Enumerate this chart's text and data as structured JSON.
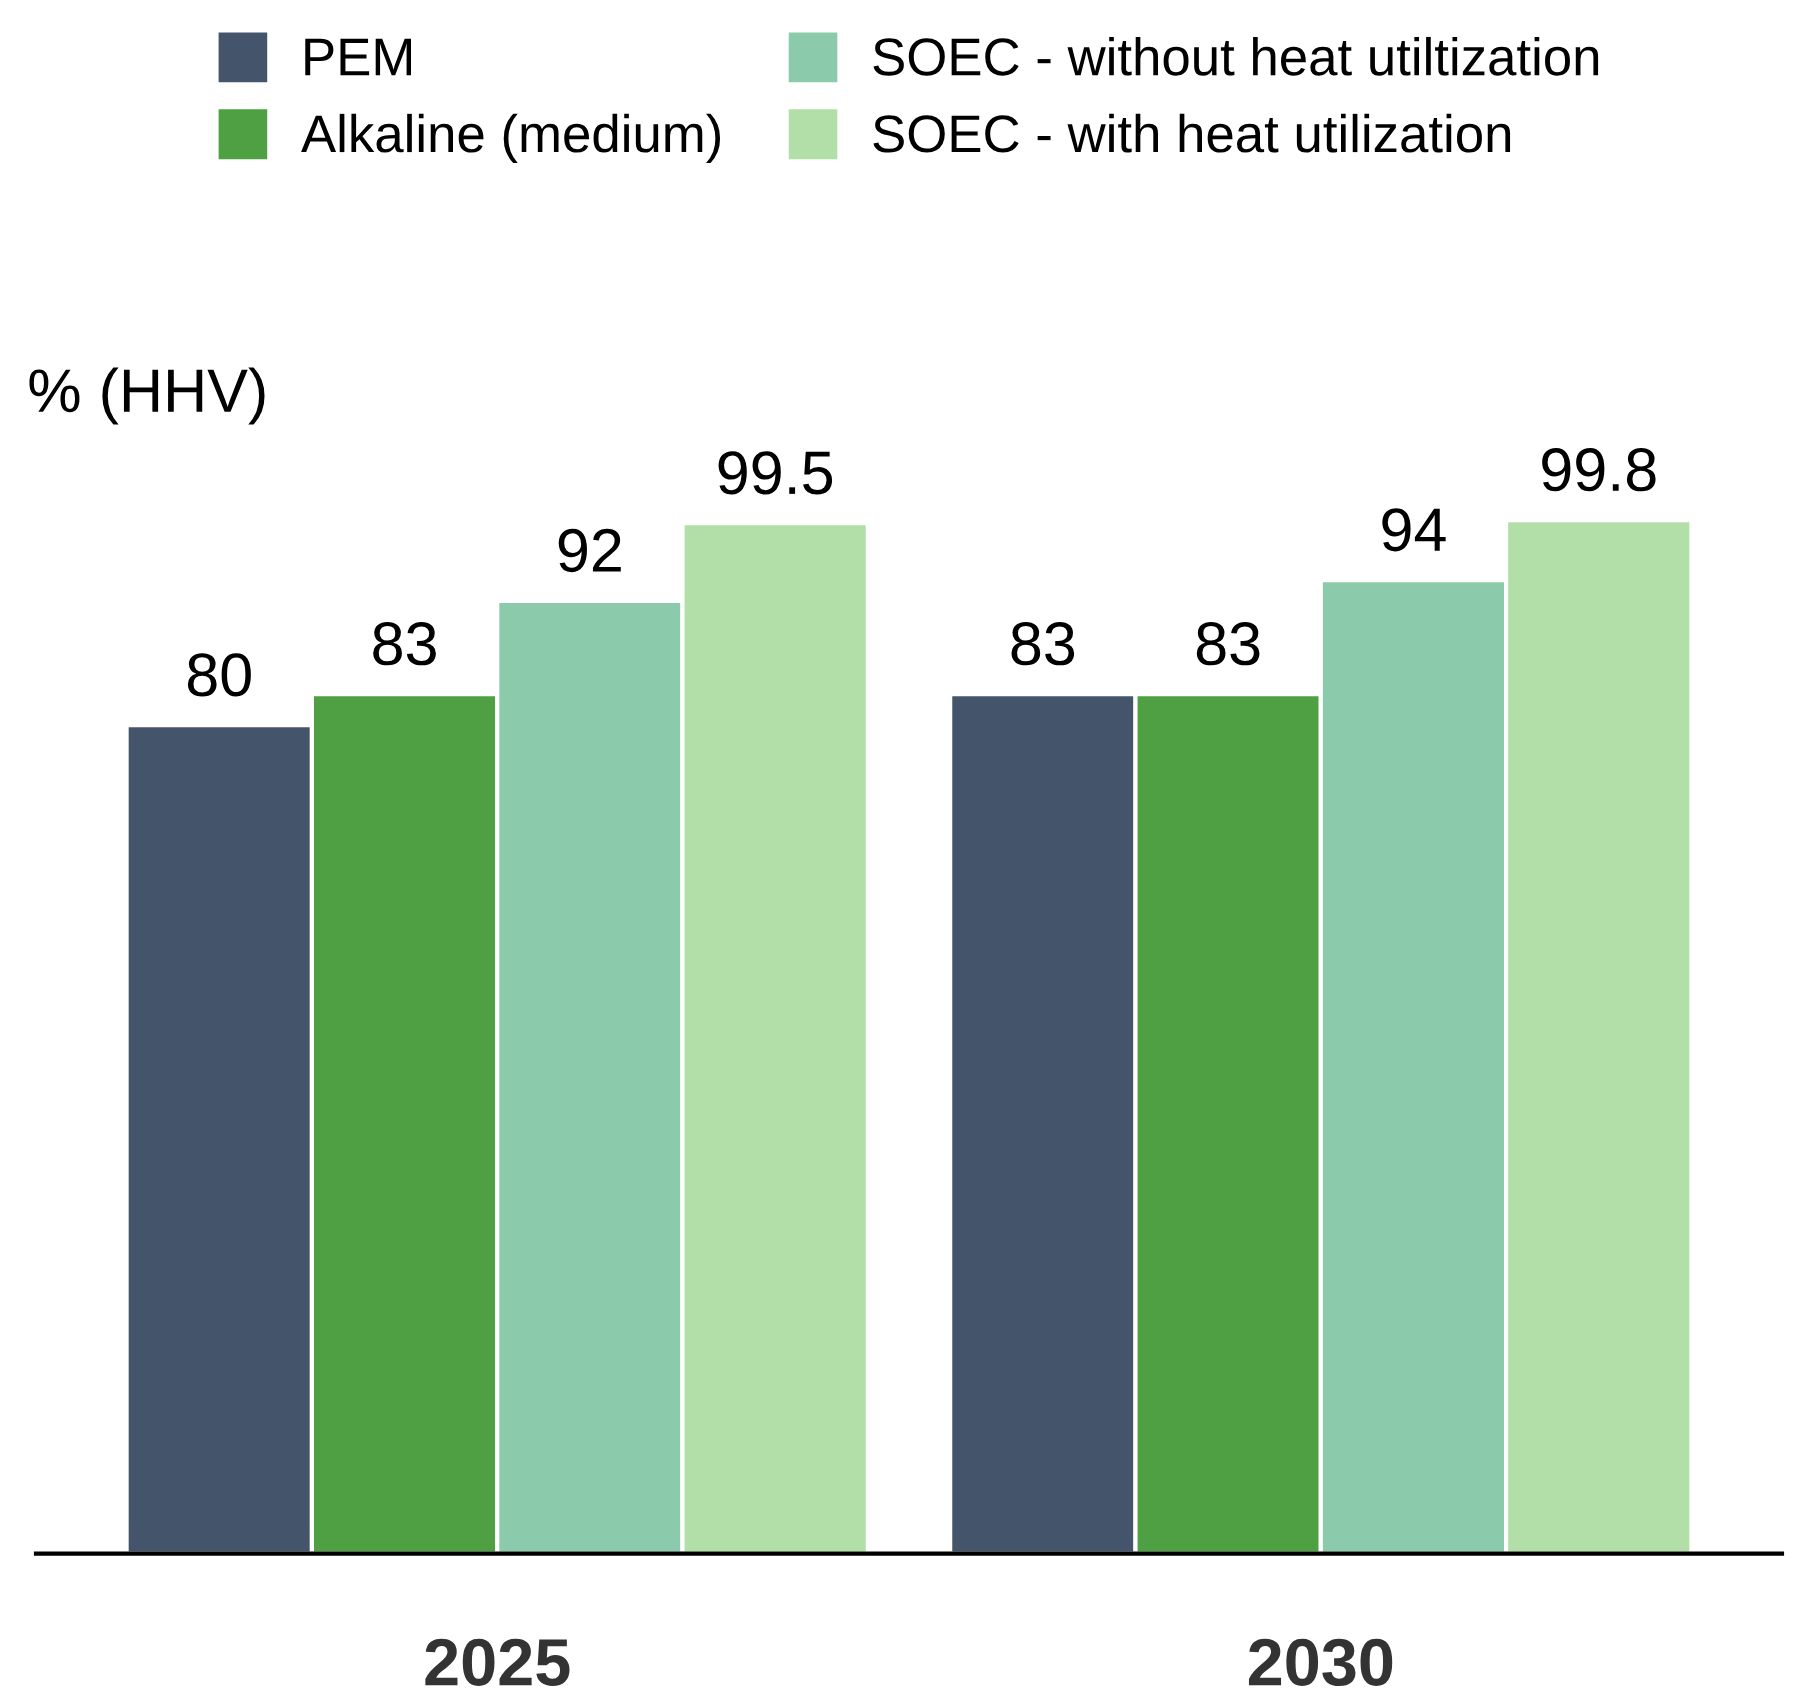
{
  "chart_data": {
    "type": "bar",
    "ylabel": "% (HHV)",
    "categories": [
      "2025",
      "2030"
    ],
    "series": [
      {
        "name": "PEM",
        "color": "#44546a",
        "values": [
          80,
          83
        ]
      },
      {
        "name": "Alkaline (medium)",
        "color": "#4ea043",
        "values": [
          83,
          83
        ]
      },
      {
        "name": "SOEC - without heat utiltization",
        "color": "#8bcbab",
        "values": [
          92,
          94
        ]
      },
      {
        "name": "SOEC - with heat utilization",
        "color": "#b2dea8",
        "values": [
          99.5,
          99.8
        ]
      }
    ],
    "data_labels": true,
    "legend": "top",
    "grid": false,
    "tick_labels": "x"
  }
}
